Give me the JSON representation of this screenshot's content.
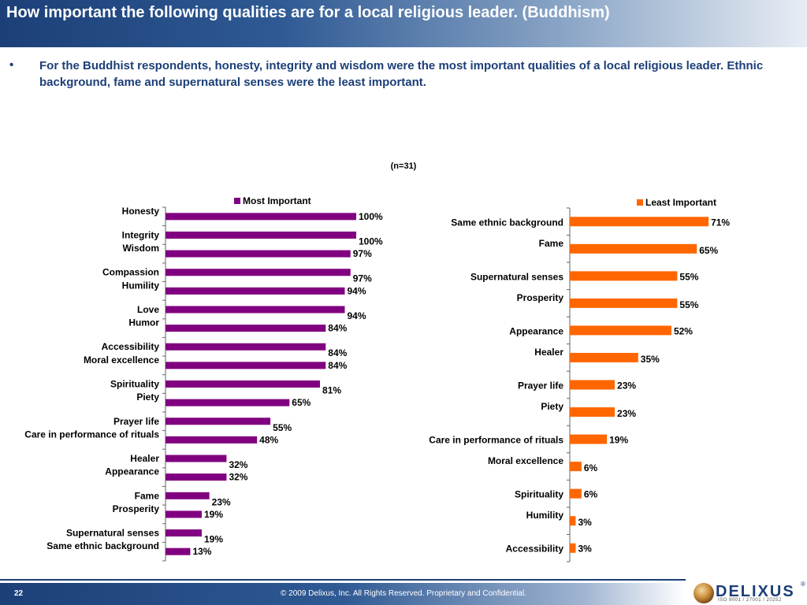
{
  "header": {
    "title": "How important the following qualities are for a local religious leader. (Buddhism)"
  },
  "summary": {
    "bullet": "•",
    "text": "For the Buddhist respondents, honesty, integrity and wisdom were the most important qualities of a local religious leader. Ethnic background, fame and supernatural senses were the least important."
  },
  "sample_label": "(n=31)",
  "footer": {
    "page_number": "22",
    "copyright": "© 2009 Delixus, Inc. All Rights Reserved. Proprietary and Confidential.",
    "logo_text": "DELIXUS",
    "logo_reg": "®",
    "logo_iso": "ISO 9001 / 27001 / 20252"
  },
  "chart_data": [
    {
      "type": "bar",
      "orientation": "horizontal",
      "legend": "Most Important",
      "legend_position": "top",
      "color": "#800080",
      "categories": [
        "Honesty",
        "Integrity",
        "Wisdom",
        "Compassion",
        "Humility",
        "Love",
        "Humor",
        "Accessibility",
        "Moral excellence",
        "Spirituality",
        "Piety",
        "Prayer life",
        "Care in performance of rituals",
        "Healer",
        "Appearance",
        "Fame",
        "Prosperity",
        "Supernatural senses",
        "Same ethnic background"
      ],
      "values": [
        100,
        100,
        97,
        97,
        94,
        94,
        84,
        84,
        84,
        81,
        65,
        55,
        48,
        32,
        32,
        23,
        19,
        19,
        13
      ],
      "labels": [
        "100%",
        "100%",
        "97%",
        "97%",
        "94%",
        "94%",
        "84%",
        "84%",
        "84%",
        "81%",
        "65%",
        "55%",
        "48%",
        "32%",
        "32%",
        "23%",
        "19%",
        "19%",
        "13%"
      ],
      "xlim": [
        0,
        100
      ]
    },
    {
      "type": "bar",
      "orientation": "horizontal",
      "legend": "Least Important",
      "legend_position": "top-right",
      "color": "#ff6600",
      "categories": [
        "Same ethnic background",
        "Fame",
        "Supernatural senses",
        "Prosperity",
        "Appearance",
        "Healer",
        "Prayer life",
        "Piety",
        "Care in performance of rituals",
        "Moral excellence",
        "Spirituality",
        "Humility",
        "Accessibility"
      ],
      "values": [
        71,
        65,
        55,
        55,
        52,
        35,
        23,
        23,
        19,
        6,
        6,
        3,
        3
      ],
      "labels": [
        "71%",
        "65%",
        "55%",
        "55%",
        "52%",
        "35%",
        "23%",
        "23%",
        "19%",
        "6%",
        "6%",
        "3%",
        "3%"
      ],
      "xlim": [
        0,
        100
      ]
    }
  ]
}
